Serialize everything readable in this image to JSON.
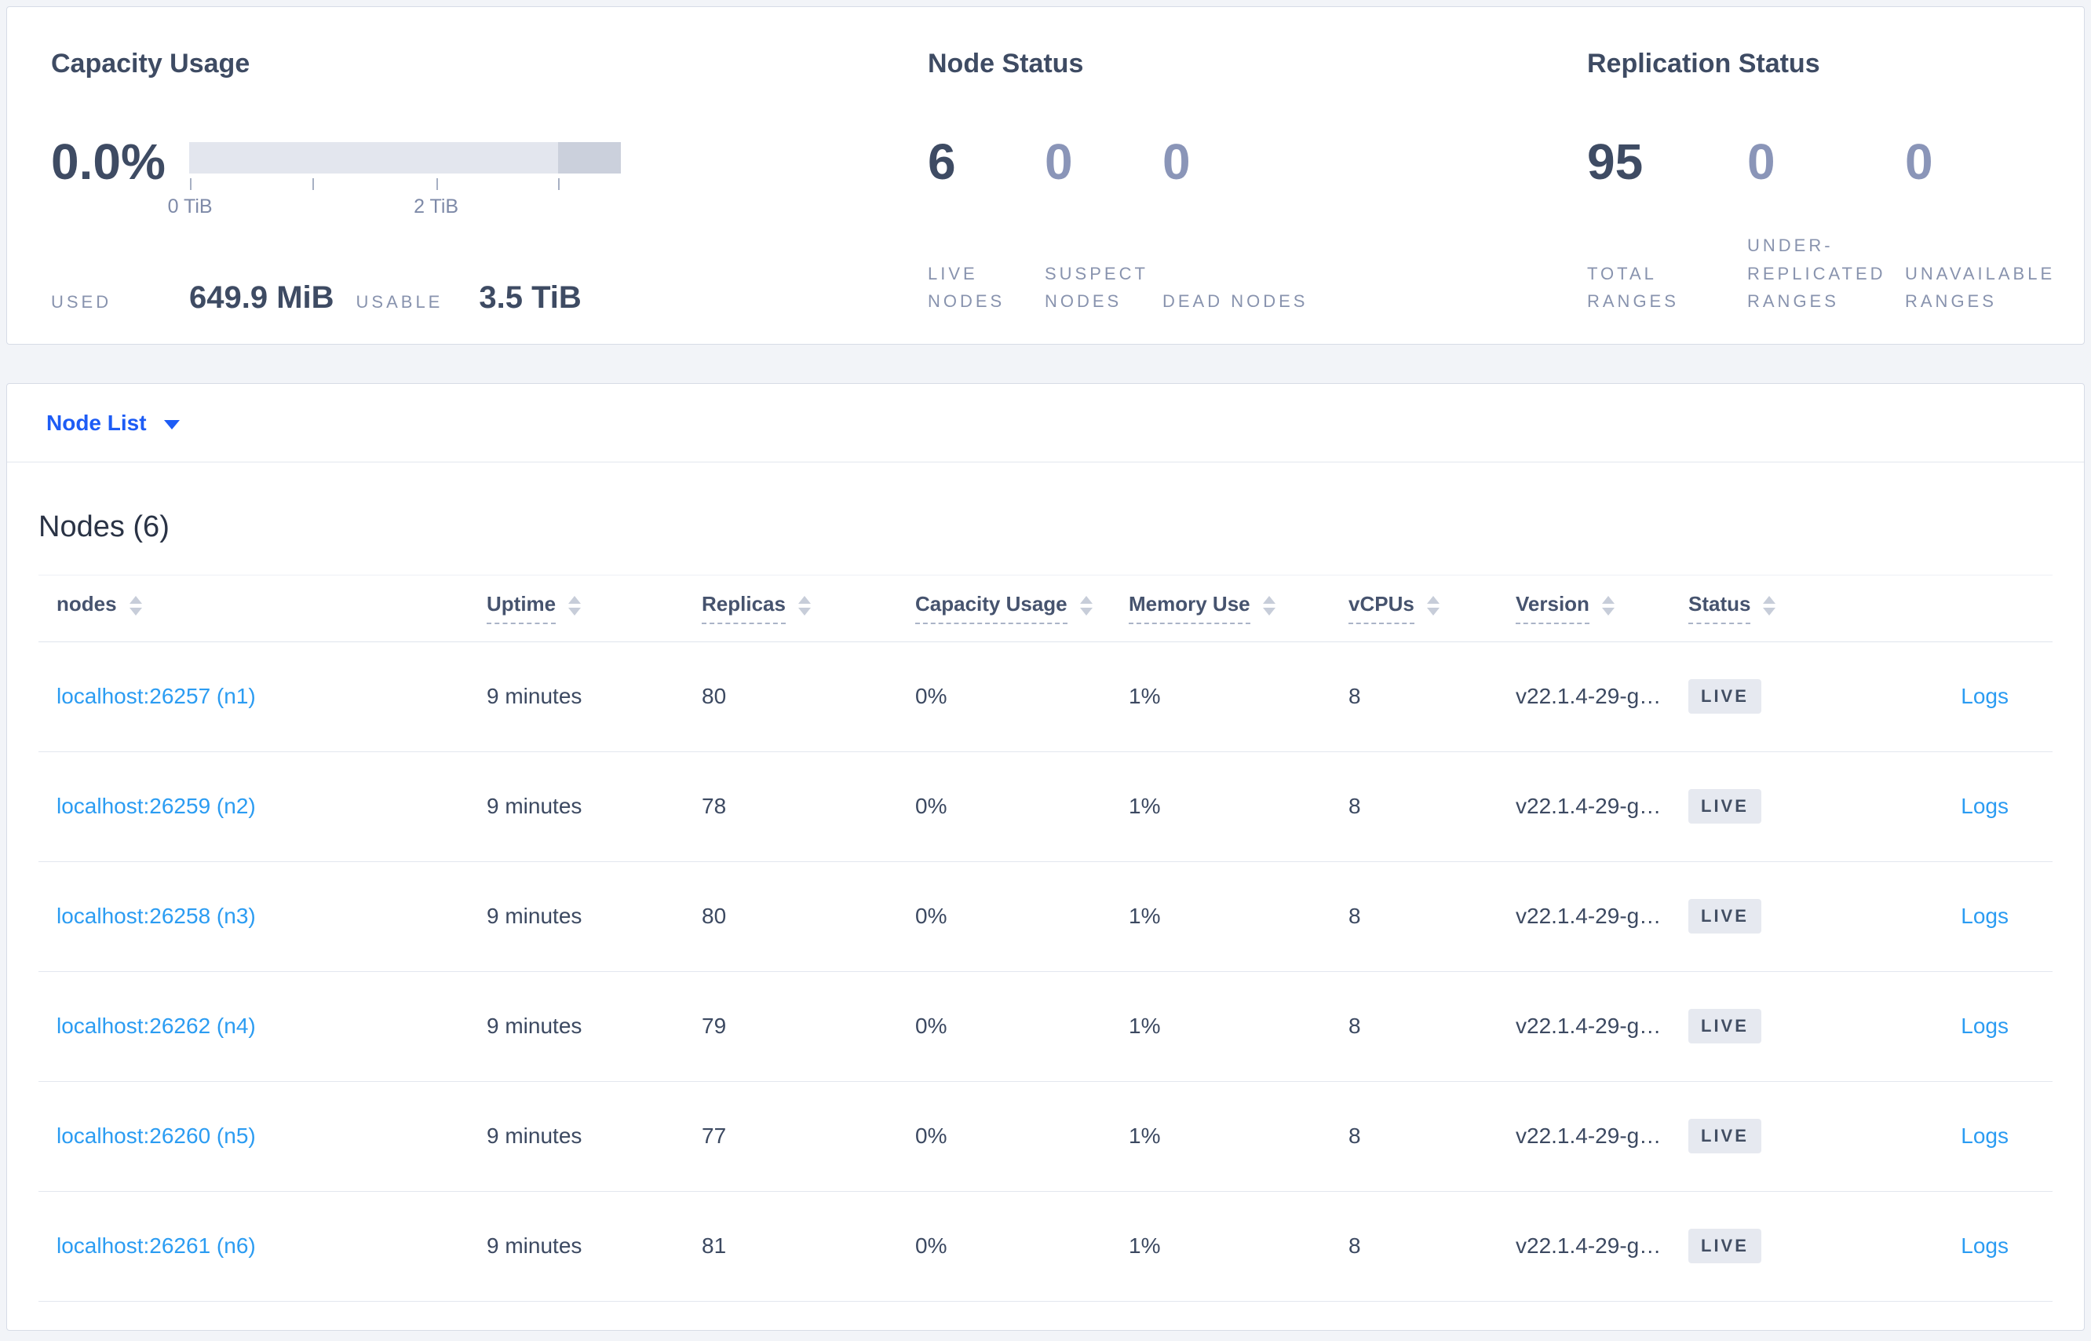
{
  "colors": {
    "page_background": "#f2f4f8",
    "panel_background": "#ffffff",
    "dark_slate_text": "#3e4b63",
    "muted_stat_value": "#8a95b8",
    "caps_label": "#8893ae",
    "selector_blue": "#1d5cf5",
    "table_link_blue": "#2b9cf2",
    "bar_light": "#e3e6ee",
    "bar_dark": "#cbd0dc",
    "badge_background": "#e6e9f0"
  },
  "summary": {
    "capacity_usage": {
      "title": "Capacity Usage",
      "percent": "0.0%",
      "bar": {
        "segments": [
          {
            "name": "usable",
            "color": "#e3e6ee",
            "from": 0,
            "to": 0.855
          },
          {
            "name": "other",
            "color": "#cbd0dc",
            "from": 0.855,
            "to": 1
          }
        ],
        "ticks": [
          {
            "pos": 0.002,
            "label": "0 TiB"
          },
          {
            "pos": 0.285,
            "label": ""
          },
          {
            "pos": 0.572,
            "label": "2 TiB"
          },
          {
            "pos": 0.855,
            "label": ""
          }
        ]
      },
      "used_label": "USED",
      "used_value": "649.9 MiB",
      "usable_label": "USABLE",
      "usable_value": "3.5 TiB"
    },
    "node_status": {
      "title": "Node Status",
      "stats": [
        {
          "value": "6",
          "label": "LIVE NODES",
          "emphasis": true
        },
        {
          "value": "0",
          "label": "SUSPECT NODES",
          "emphasis": false
        },
        {
          "value": "0",
          "label": "DEAD NODES",
          "emphasis": false
        }
      ]
    },
    "replication_status": {
      "title": "Replication Status",
      "stats": [
        {
          "value": "95",
          "label": "TOTAL RANGES",
          "emphasis": true
        },
        {
          "value": "0",
          "label": "UNDER-REPLICATED RANGES",
          "emphasis": false
        },
        {
          "value": "0",
          "label": "UNAVAILABLE RANGES",
          "emphasis": false
        }
      ]
    }
  },
  "view_selector": {
    "label": "Node List"
  },
  "nodes_table": {
    "title": "Nodes (6)",
    "columns": [
      {
        "label": "nodes",
        "underline": false
      },
      {
        "label": "Uptime",
        "underline": true
      },
      {
        "label": "Replicas",
        "underline": true
      },
      {
        "label": "Capacity Usage",
        "underline": true
      },
      {
        "label": "Memory Use",
        "underline": true
      },
      {
        "label": "vCPUs",
        "underline": true
      },
      {
        "label": "Version",
        "underline": true
      },
      {
        "label": "Status",
        "underline": true
      }
    ],
    "rows": [
      {
        "node": "localhost:26257 (n1)",
        "uptime": "9 minutes",
        "replicas": "80",
        "capacity_usage": "0%",
        "memory_use": "1%",
        "vcpus": "8",
        "version": "v22.1.4-29-g…",
        "status": "LIVE",
        "logs": "Logs"
      },
      {
        "node": "localhost:26259 (n2)",
        "uptime": "9 minutes",
        "replicas": "78",
        "capacity_usage": "0%",
        "memory_use": "1%",
        "vcpus": "8",
        "version": "v22.1.4-29-g…",
        "status": "LIVE",
        "logs": "Logs"
      },
      {
        "node": "localhost:26258 (n3)",
        "uptime": "9 minutes",
        "replicas": "80",
        "capacity_usage": "0%",
        "memory_use": "1%",
        "vcpus": "8",
        "version": "v22.1.4-29-g…",
        "status": "LIVE",
        "logs": "Logs"
      },
      {
        "node": "localhost:26262 (n4)",
        "uptime": "9 minutes",
        "replicas": "79",
        "capacity_usage": "0%",
        "memory_use": "1%",
        "vcpus": "8",
        "version": "v22.1.4-29-g…",
        "status": "LIVE",
        "logs": "Logs"
      },
      {
        "node": "localhost:26260 (n5)",
        "uptime": "9 minutes",
        "replicas": "77",
        "capacity_usage": "0%",
        "memory_use": "1%",
        "vcpus": "8",
        "version": "v22.1.4-29-g…",
        "status": "LIVE",
        "logs": "Logs"
      },
      {
        "node": "localhost:26261 (n6)",
        "uptime": "9 minutes",
        "replicas": "81",
        "capacity_usage": "0%",
        "memory_use": "1%",
        "vcpus": "8",
        "version": "v22.1.4-29-g…",
        "status": "LIVE",
        "logs": "Logs"
      }
    ]
  }
}
